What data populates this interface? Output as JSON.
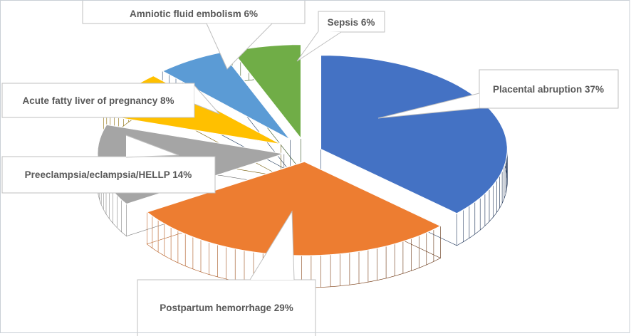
{
  "window": {
    "background_color": "#FFFFFF",
    "frame_border_color": "#C9CFD6"
  },
  "callout_style": {
    "box_fill": "#FFFFFF",
    "box_border_color": "#BFBFBF",
    "text_color": "#595959"
  },
  "chart_data": {
    "type": "pie",
    "style": "3d-exploded",
    "title": "",
    "legend": "none",
    "label_position": "outside-callout-boxes",
    "start_angle_deg_clockwise_from_top": 0,
    "slices": [
      {
        "label": "Placental abruption",
        "value_pct": 37,
        "callout_text": "Placental abruption 37%",
        "color": "#4472C4",
        "side_color_from": "#2A4672",
        "side_color_to": "#1B3052"
      },
      {
        "label": "Postpartum hemorrhage",
        "value_pct": 29,
        "callout_text": "Postpartum hemorrhage 29%",
        "color": "#ED7D31",
        "side_color_from": "#BA5E21",
        "side_color_to": "#5E2E0E"
      },
      {
        "label": "Preeclampsia/eclampsia/HELLP",
        "value_pct": 14,
        "callout_text": "Preeclampsia/eclampsia/HELLP 14%",
        "color": "#A5A5A5",
        "side_color_from": "#8C8C8C",
        "side_color_to": "#555555"
      },
      {
        "label": "Acute fatty liver of pregnancy",
        "value_pct": 8,
        "callout_text": "Acute fatty liver of pregnancy 8%",
        "color": "#FFC000",
        "side_color_from": "#8A6A00",
        "side_color_to": "#6B5300"
      },
      {
        "label": "Amniotic fluid embolism",
        "value_pct": 6,
        "callout_text": "Amniotic fluid embolism 6%",
        "color": "#5B9BD5",
        "side_color_from": "#2C4B70",
        "side_color_to": "#20395A"
      },
      {
        "label": "Sepsis",
        "value_pct": 6,
        "callout_text": "Sepsis 6%",
        "color": "#70AD47",
        "side_color_from": "#3E6126",
        "side_color_to": "#2F4C1D"
      }
    ]
  }
}
